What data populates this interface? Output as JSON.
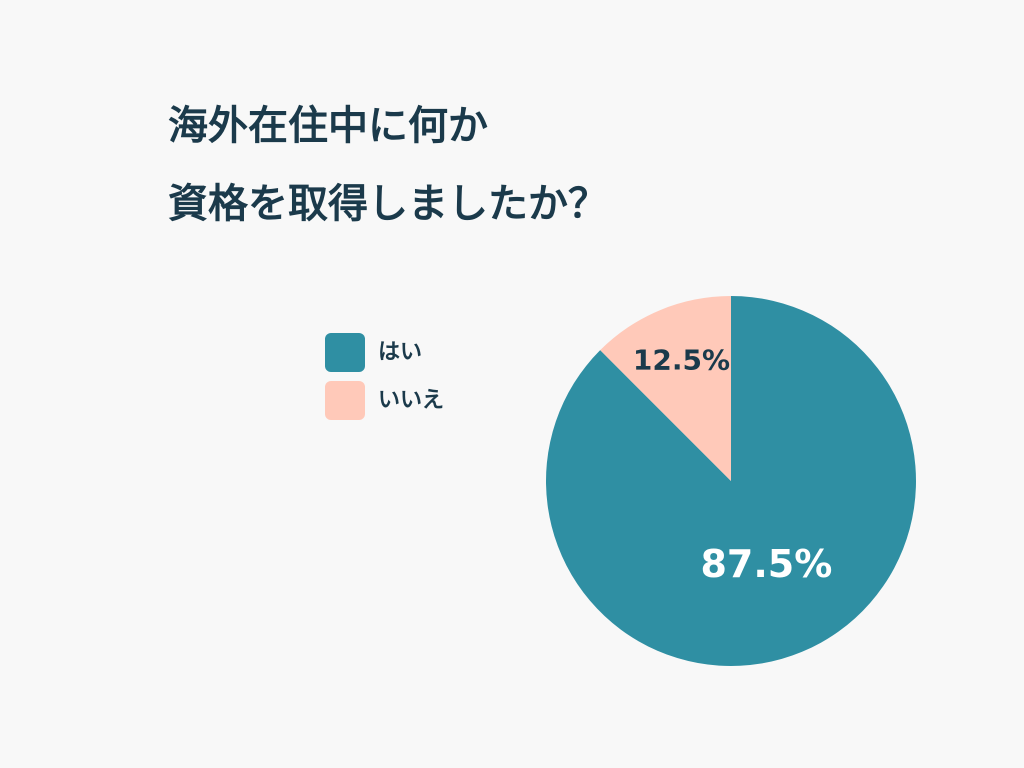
{
  "chart_data": {
    "type": "pie",
    "title": [
      "海外在住中に何か",
      "資格を取得しましたか？"
    ],
    "categories": [
      "はい",
      "いいえ"
    ],
    "values": [
      87.5,
      12.5
    ],
    "value_labels": [
      "87.5%",
      "12.5%"
    ],
    "colors": [
      "#2f8fa3",
      "#ffc9b9"
    ],
    "label_colors": [
      "#ffffff",
      "#1b3a4b"
    ]
  }
}
